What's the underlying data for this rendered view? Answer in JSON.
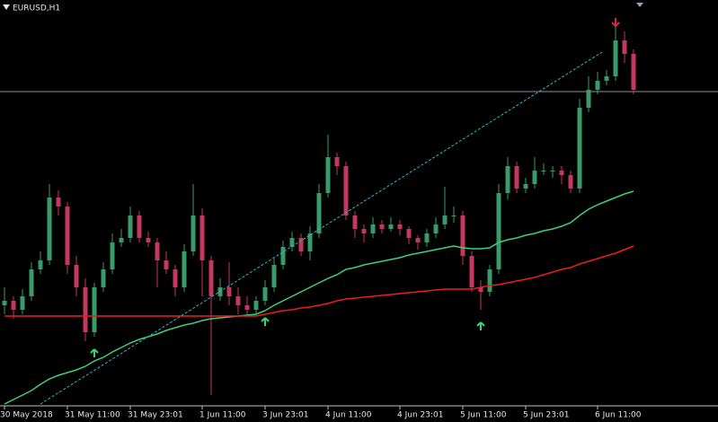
{
  "chart_data": {
    "type": "candlestick",
    "title": "EURUSD,H1",
    "ylim": [
      0,
      470
    ],
    "categories": [
      "30 May 2018",
      null,
      null,
      null,
      null,
      null,
      null,
      "31 May 11:00",
      null,
      null,
      null,
      null,
      null,
      null,
      "31 May 23:01",
      null,
      null,
      null,
      null,
      null,
      null,
      null,
      "1 Jun 11:00",
      null,
      null,
      null,
      null,
      null,
      null,
      "3 Jun 23:01",
      null,
      null,
      null,
      null,
      null,
      null,
      "4 Jun 11:00",
      null,
      null,
      null,
      null,
      null,
      null,
      null,
      "4 Jun 23:01",
      null,
      null,
      null,
      null,
      null,
      null,
      "5 Jun 11:00",
      null,
      null,
      null,
      null,
      null,
      null,
      "5 Jun 23:01",
      null,
      null,
      null,
      null,
      null,
      null,
      null,
      "6 Jun 11:00",
      null,
      null,
      null,
      null
    ],
    "candles": [
      [
        130,
        150,
        120,
        135
      ],
      [
        135,
        140,
        115,
        125
      ],
      [
        125,
        148,
        120,
        140
      ],
      [
        140,
        178,
        135,
        170
      ],
      [
        170,
        190,
        165,
        180
      ],
      [
        180,
        265,
        175,
        250
      ],
      [
        250,
        258,
        230,
        240
      ],
      [
        240,
        245,
        165,
        175
      ],
      [
        175,
        185,
        140,
        150
      ],
      [
        150,
        160,
        90,
        100
      ],
      [
        100,
        155,
        95,
        150
      ],
      [
        150,
        178,
        145,
        170
      ],
      [
        170,
        210,
        165,
        200
      ],
      [
        200,
        215,
        195,
        205
      ],
      [
        205,
        240,
        200,
        230
      ],
      [
        230,
        235,
        200,
        205
      ],
      [
        205,
        212,
        195,
        200
      ],
      [
        200,
        205,
        150,
        180
      ],
      [
        180,
        190,
        165,
        170
      ],
      [
        170,
        175,
        140,
        150
      ],
      [
        150,
        198,
        145,
        190
      ],
      [
        190,
        265,
        185,
        230
      ],
      [
        230,
        238,
        140,
        180
      ],
      [
        180,
        185,
        30,
        140
      ],
      [
        140,
        160,
        135,
        150
      ],
      [
        150,
        178,
        130,
        140
      ],
      [
        140,
        150,
        120,
        130
      ],
      [
        130,
        140,
        118,
        125
      ],
      [
        125,
        140,
        120,
        135
      ],
      [
        135,
        158,
        130,
        150
      ],
      [
        150,
        182,
        145,
        175
      ],
      [
        175,
        202,
        170,
        195
      ],
      [
        195,
        212,
        190,
        205
      ],
      [
        205,
        210,
        185,
        190
      ],
      [
        190,
        218,
        180,
        210
      ],
      [
        210,
        265,
        205,
        255
      ],
      [
        255,
        320,
        250,
        295
      ],
      [
        295,
        300,
        275,
        285
      ],
      [
        285,
        290,
        225,
        230
      ],
      [
        230,
        235,
        205,
        215
      ],
      [
        215,
        220,
        200,
        210
      ],
      [
        210,
        228,
        205,
        220
      ],
      [
        220,
        225,
        210,
        215
      ],
      [
        215,
        228,
        212,
        220
      ],
      [
        220,
        225,
        208,
        215
      ],
      [
        215,
        218,
        198,
        205
      ],
      [
        205,
        208,
        192,
        200
      ],
      [
        200,
        215,
        195,
        210
      ],
      [
        210,
        228,
        205,
        220
      ],
      [
        220,
        262,
        215,
        230
      ],
      [
        230,
        240,
        222,
        230
      ],
      [
        230,
        235,
        175,
        185
      ],
      [
        185,
        190,
        145,
        150
      ],
      [
        150,
        158,
        125,
        145
      ],
      [
        145,
        175,
        140,
        170
      ],
      [
        170,
        265,
        165,
        255
      ],
      [
        255,
        295,
        248,
        285
      ],
      [
        285,
        290,
        255,
        260
      ],
      [
        260,
        272,
        255,
        265
      ],
      [
        265,
        295,
        260,
        280
      ],
      [
        280,
        288,
        275,
        280
      ],
      [
        280,
        285,
        272,
        280
      ],
      [
        280,
        285,
        265,
        275
      ],
      [
        275,
        280,
        255,
        260
      ],
      [
        260,
        360,
        255,
        350
      ],
      [
        350,
        385,
        345,
        370
      ],
      [
        370,
        390,
        365,
        380
      ],
      [
        380,
        392,
        375,
        385
      ],
      [
        385,
        445,
        380,
        425
      ],
      [
        425,
        435,
        400,
        410
      ],
      [
        410,
        415,
        365,
        370
      ]
    ],
    "up_color": "#3a9a6a",
    "down_color": "#c2385f",
    "series": [
      {
        "color": "#3ecf7a",
        "values": [
          20,
          25,
          30,
          35,
          42,
          48,
          52,
          55,
          58,
          62,
          68,
          72,
          78,
          83,
          88,
          92,
          95,
          98,
          102,
          105,
          108,
          110,
          113,
          115,
          116,
          117,
          118,
          119,
          120,
          124,
          130,
          135,
          140,
          145,
          150,
          155,
          160,
          164,
          170,
          172,
          175,
          177,
          179,
          181,
          183,
          186,
          188,
          190,
          192,
          194,
          196,
          194,
          193,
          193,
          194,
          200,
          203,
          205,
          208,
          210,
          213,
          215,
          218,
          222,
          230,
          237,
          242,
          246,
          250,
          254,
          257
        ]
      },
      {
        "color": "#e8201c",
        "values": [
          118,
          118,
          118,
          118,
          118,
          118,
          118,
          118,
          118,
          118,
          118,
          118,
          118,
          118,
          118,
          118,
          118,
          118,
          118,
          118,
          118,
          118,
          118,
          118,
          118,
          118,
          118,
          118,
          118,
          120,
          122,
          124,
          125,
          127,
          128,
          130,
          132,
          135,
          137,
          138,
          139,
          140,
          141,
          142,
          143,
          144,
          145,
          146,
          147,
          148,
          148,
          148,
          148,
          150,
          152,
          153,
          155,
          157,
          159,
          161,
          164,
          167,
          170,
          172,
          176,
          179,
          182,
          185,
          188,
          192,
          196
        ]
      }
    ],
    "hline": 368,
    "hline_color": "#8a8f98",
    "trendline": {
      "x": [
        4,
        66.5
      ],
      "values": [
        20,
        412
      ],
      "color": "#2fb8c8"
    },
    "buy_signals": [
      10,
      29,
      53
    ],
    "sell_signals": [
      68
    ],
    "buy_color": "#3ecf7a",
    "sell_color": "#e0204a"
  }
}
